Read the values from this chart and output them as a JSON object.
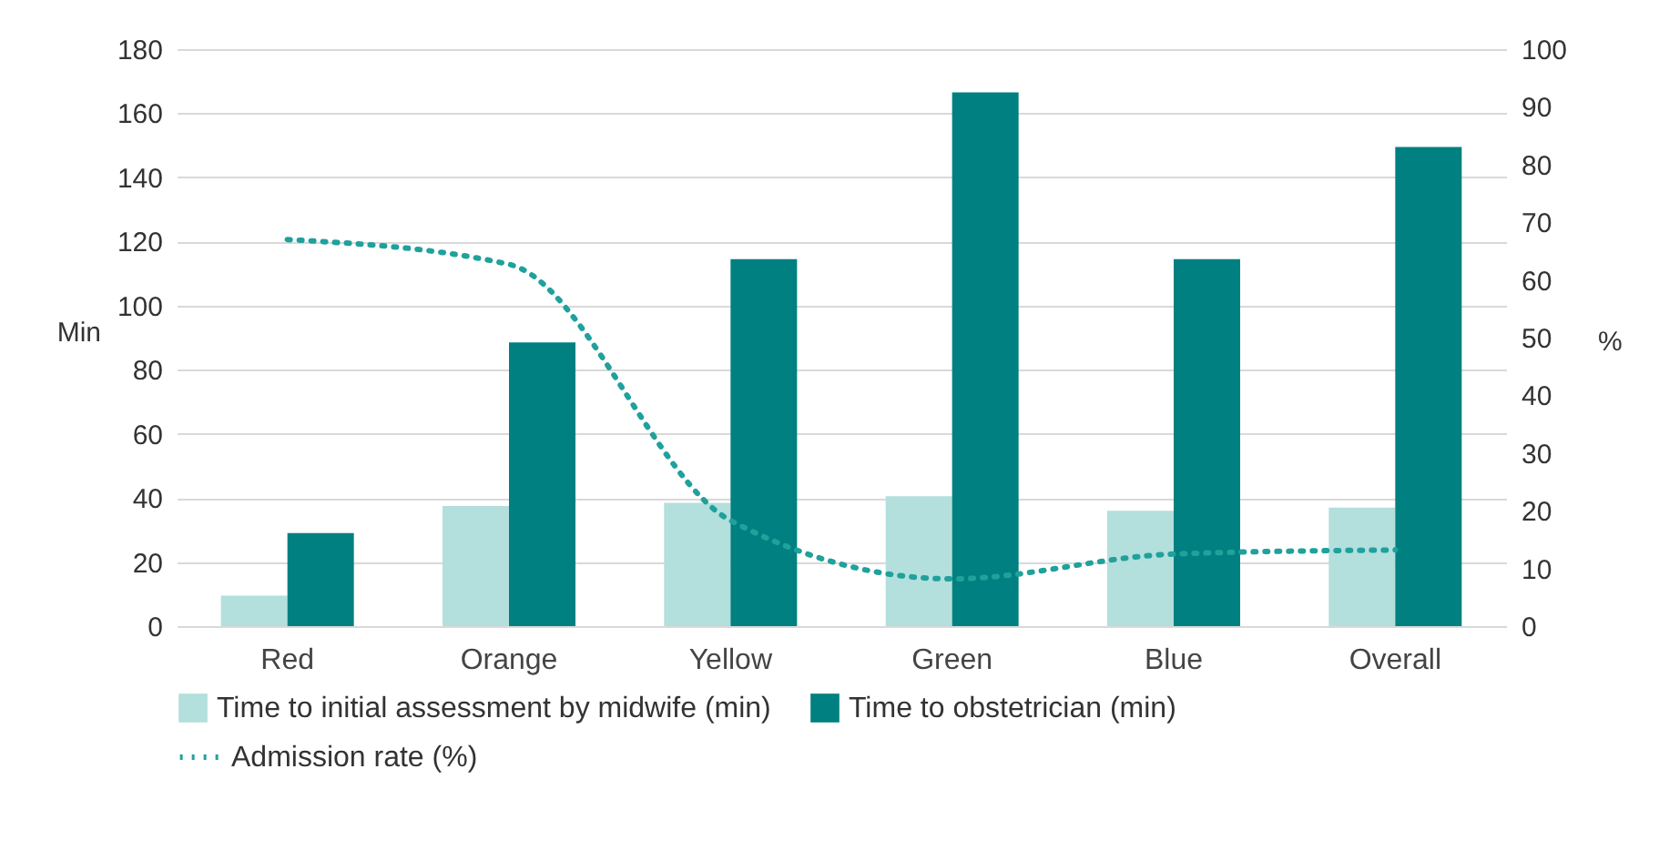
{
  "chart_data": {
    "type": "bar",
    "categories": [
      "Red",
      "Orange",
      "Yellow",
      "Green",
      "Blue",
      "Overall"
    ],
    "ylabel": "Min",
    "y2label": "%",
    "ylim": [
      0,
      180
    ],
    "yticks": [
      0,
      20,
      40,
      60,
      80,
      100,
      120,
      140,
      160,
      180
    ],
    "y2lim": [
      0,
      100
    ],
    "y2ticks": [
      0,
      10,
      20,
      30,
      40,
      50,
      60,
      70,
      80,
      90,
      100
    ],
    "grid": "y",
    "legend": "bottom",
    "line_style": "dotted",
    "marker": "none",
    "series": [
      {
        "name": "Time to initial assessment by midwife (min)",
        "color": "#b3dfdc",
        "values": [
          9.5,
          37.5,
          38.5,
          40.5,
          36,
          37
        ]
      },
      {
        "name": "Time to obstetrician (min)",
        "color": "#008080",
        "values": [
          29,
          88.5,
          114.5,
          166.5,
          114.5,
          149.5
        ]
      },
      {
        "name": "Admission rate (%)",
        "type": "line",
        "axis": "y2",
        "color": "#1fa19c",
        "values": [
          67,
          62.7,
          18.3,
          8.2,
          12.5,
          13.2
        ]
      }
    ]
  }
}
